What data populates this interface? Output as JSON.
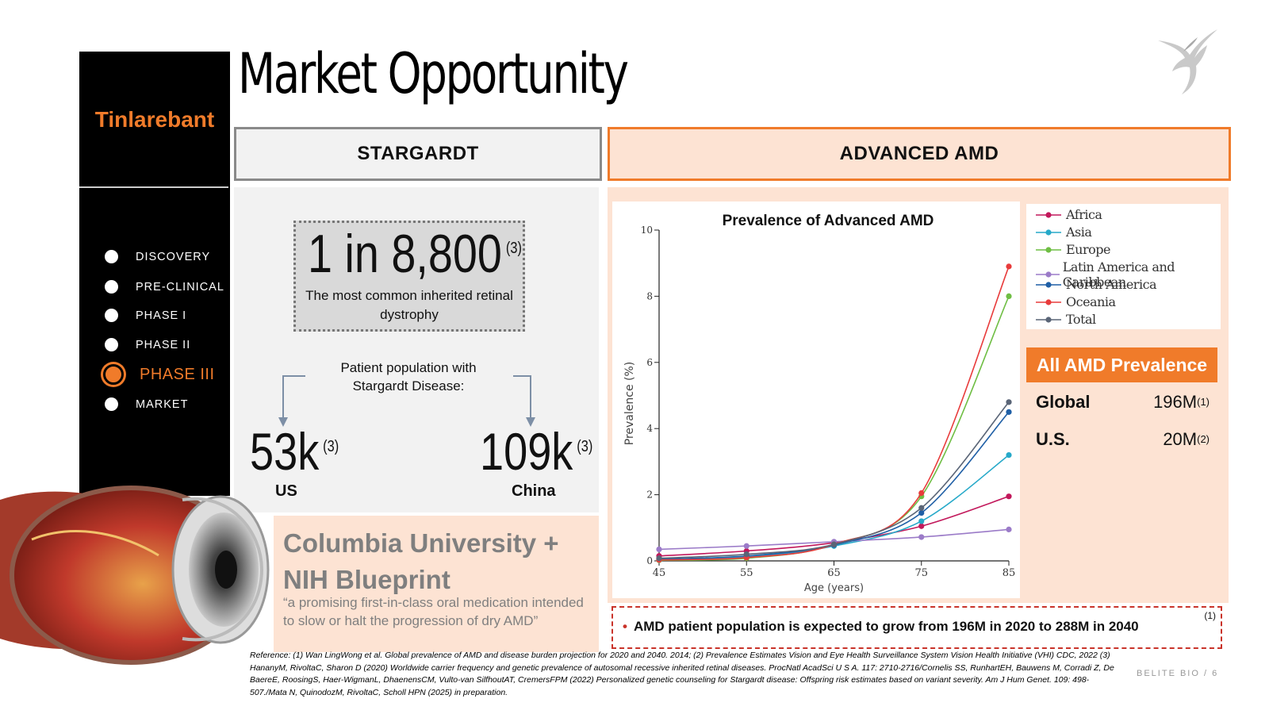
{
  "title": "Market Opportunity",
  "brand": "Tinlarebant",
  "nav": [
    {
      "label": "DISCOVERY",
      "active": false
    },
    {
      "label": "PRE-CLINICAL",
      "active": false
    },
    {
      "label": "PHASE I",
      "active": false
    },
    {
      "label": "PHASE II",
      "active": false
    },
    {
      "label": "PHASE III",
      "active": true
    },
    {
      "label": "MARKET",
      "active": false
    }
  ],
  "stargardt": {
    "header": "STARGARDT",
    "stat_main": "1 in 8,800",
    "stat_ref": "(3)",
    "stat_desc": "The most common inherited retinal dystrophy",
    "population_label": "Patient population with Stargardt Disease:",
    "us_value": "53k",
    "us_ref": "(3)",
    "us_label": "US",
    "china_value": "109k",
    "china_ref": "(3)",
    "china_label": "China"
  },
  "columbia": {
    "title": "Columbia University + NIH Blueprint",
    "quote": "“a promising first-in-class oral medication intended to slow or halt the progression of dry AMD”"
  },
  "amd": {
    "header": "ADVANCED AMD",
    "table_header": "All AMD Prevalence",
    "rows": [
      {
        "label": "Global",
        "value": "196M",
        "ref": "(1)"
      },
      {
        "label": "U.S.",
        "value": "20M",
        "ref": "(2)"
      }
    ],
    "note": "AMD patient population is expected to grow from 196M in 2020 to 288M in 2040",
    "note_ref": "(1)"
  },
  "chart_data": {
    "type": "line",
    "title": "Prevalence of Advanced AMD",
    "xlabel": "Age (years)",
    "ylabel": "Prevalence (%)",
    "x": [
      45,
      55,
      65,
      75,
      85
    ],
    "xlim": [
      45,
      85
    ],
    "ylim": [
      0,
      10
    ],
    "yticks": [
      0,
      2,
      4,
      6,
      8,
      10
    ],
    "legend_position": "right",
    "series": [
      {
        "name": "Africa",
        "color": "#c2185b",
        "values": [
          0.15,
          0.3,
          0.55,
          1.05,
          1.95
        ]
      },
      {
        "name": "Asia",
        "color": "#26a9c9",
        "values": [
          0.05,
          0.12,
          0.45,
          1.2,
          3.2
        ]
      },
      {
        "name": "Europe",
        "color": "#6fbe44",
        "values": [
          0.02,
          0.08,
          0.5,
          1.95,
          8.0
        ]
      },
      {
        "name": "Latin America and Caribbean",
        "color": "#9b7bc8",
        "values": [
          0.35,
          0.45,
          0.58,
          0.72,
          0.95
        ]
      },
      {
        "name": "North America",
        "color": "#1f5fa6",
        "values": [
          0.05,
          0.15,
          0.48,
          1.45,
          4.5
        ]
      },
      {
        "name": "Oceania",
        "color": "#e83b3b",
        "values": [
          0.03,
          0.1,
          0.5,
          2.05,
          8.9
        ]
      },
      {
        "name": "Total",
        "color": "#5a6577",
        "values": [
          0.08,
          0.2,
          0.5,
          1.6,
          4.8
        ]
      }
    ]
  },
  "reference": "Reference: (1) Wan LingWong et al. Global prevalence of AMD and disease burden projection for 2020 and 2040. 2014; (2) Prevalence Estimates Vision and Eye Health Surveillance System Vision Health Initiative (VHI) CDC, 2022 (3) HananyM, RivoltaC, Sharon D (2020) Worldwide carrier frequency and genetic prevalence of autosomal recessive inherited retinal diseases. ProcNatl AcadSci U S A. 117: 2710-2716/Cornelis SS, RunhartEH, Bauwens M, Corradi Z, De BaereE, RoosingS, Haer-WigmanL, DhaenensCM, Vulto-van SilfhoutAT, CremersFPM (2022) Personalized genetic counseling for Stargardt disease: Offspring risk estimates based on variant severity. Am J Hum Genet. 109: 498-507./Mata N, QuinodozM, RivoltaC, Scholl HPN (2025) in preparation.",
  "footer": "BELITE BIO  /  6"
}
